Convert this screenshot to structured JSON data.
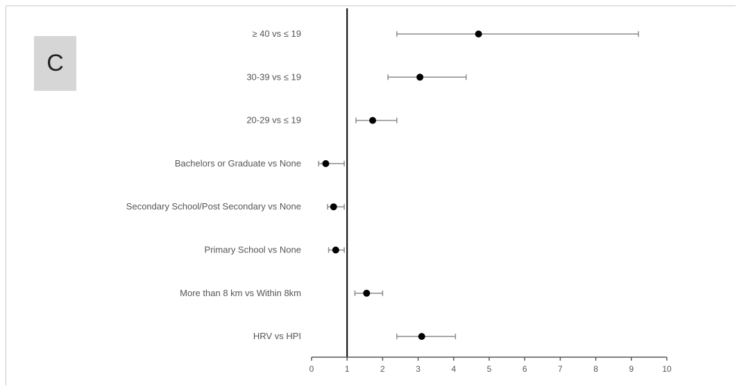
{
  "panel": {
    "label": "C"
  },
  "chart_data": {
    "type": "forest",
    "title": "",
    "xlabel": "",
    "ylabel": "",
    "xlim": [
      0,
      10
    ],
    "x_ticks": [
      0,
      1,
      2,
      3,
      4,
      5,
      6,
      7,
      8,
      9,
      10
    ],
    "reference_line": 1,
    "rows": [
      {
        "label": "≥ 40 vs ≤ 19",
        "estimate": 4.7,
        "lower": 2.4,
        "upper": 9.2
      },
      {
        "label": "30-39 vs ≤ 19",
        "estimate": 3.05,
        "lower": 2.15,
        "upper": 4.35
      },
      {
        "label": "20-29  vs ≤ 19",
        "estimate": 1.72,
        "lower": 1.25,
        "upper": 2.4
      },
      {
        "label": "Bachelors or Graduate vs None",
        "estimate": 0.4,
        "lower": 0.2,
        "upper": 0.92
      },
      {
        "label": "Secondary School/Post Secondary vs None",
        "estimate": 0.62,
        "lower": 0.45,
        "upper": 0.92
      },
      {
        "label": "Primary School vs None",
        "estimate": 0.68,
        "lower": 0.48,
        "upper": 0.92
      },
      {
        "label": "More than 8 km vs Within 8km",
        "estimate": 1.55,
        "lower": 1.22,
        "upper": 2.0
      },
      {
        "label": "HRV vs HPI",
        "estimate": 3.1,
        "lower": 2.4,
        "upper": 4.05
      }
    ],
    "colors": {
      "point": "#000000",
      "ci": "#8a8a8a",
      "reference": "#000000",
      "axis": "#555555"
    }
  }
}
